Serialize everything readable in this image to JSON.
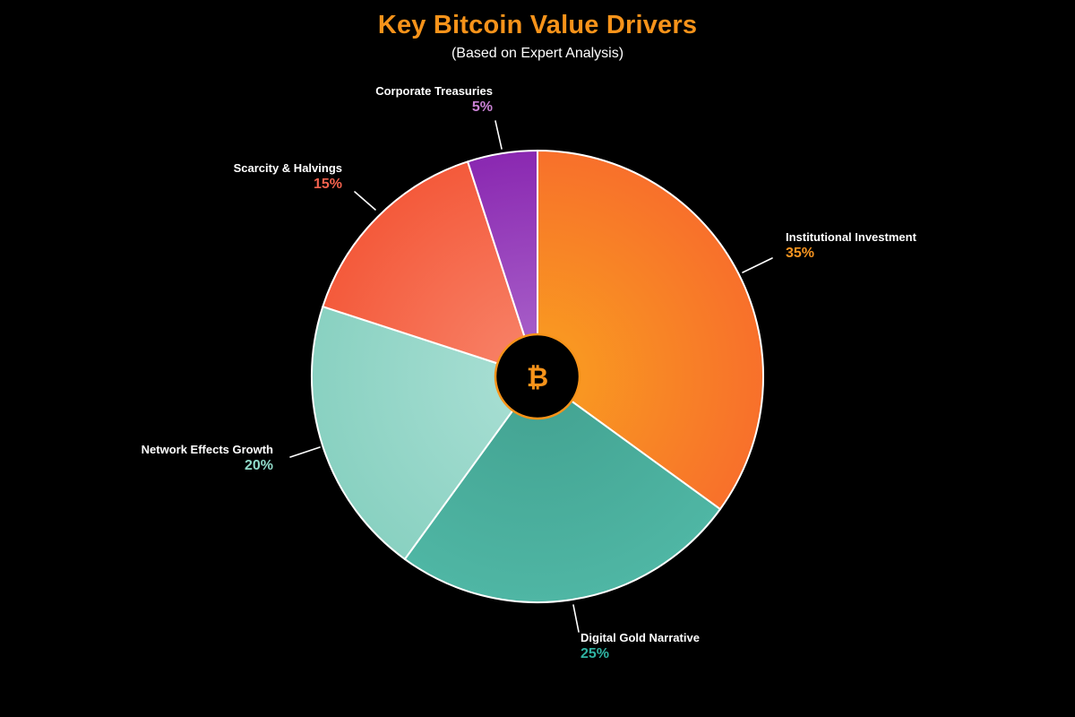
{
  "colors": {
    "background": "#000000",
    "title": "#f7931a",
    "subtitle": "#ffffff",
    "label_text": "#ffffff",
    "slice_border": "#ffffff",
    "leader_line": "#ffffff"
  },
  "chart_data": {
    "type": "pie",
    "title": "Key Bitcoin Value Drivers",
    "subtitle": "(Based on Expert Analysis)",
    "start_angle_deg": 0,
    "direction": "clockwise",
    "legend_position": "none",
    "donut_center": {
      "symbol": "₿",
      "symbol_name": "bitcoin-symbol",
      "symbol_color": "#f7931a",
      "fill": "#000000",
      "border_color": "#f7931a"
    },
    "categories": [
      "Institutional Investment",
      "Digital Gold Narrative",
      "Network Effects Growth",
      "Scarcity & Halvings",
      "Corporate Treasuries"
    ],
    "values": [
      35,
      25,
      20,
      15,
      5
    ],
    "slices": [
      {
        "label": "Institutional Investment",
        "value": 35,
        "pct_label": "35%",
        "color_inner": "#f9a01f",
        "color_outer": "#f8702b",
        "pct_color": "#f79420"
      },
      {
        "label": "Digital Gold Narrative",
        "value": 25,
        "pct_label": "25%",
        "color_inner": "#42a190",
        "color_outer": "#4fb6a4",
        "pct_color": "#2fb3a2"
      },
      {
        "label": "Network Effects Growth",
        "value": 20,
        "pct_label": "20%",
        "color_inner": "#abe0d5",
        "color_outer": "#89d1c1",
        "pct_color": "#90dac9"
      },
      {
        "label": "Scarcity & Halvings",
        "value": 15,
        "pct_label": "15%",
        "color_inner": "#f8866c",
        "color_outer": "#f45a3b",
        "pct_color": "#f2614d"
      },
      {
        "label": "Corporate Treasuries",
        "value": 5,
        "pct_label": "5%",
        "color_inner": "#ac68cc",
        "color_outer": "#8a28b1",
        "pct_color": "#c881d3"
      }
    ]
  }
}
